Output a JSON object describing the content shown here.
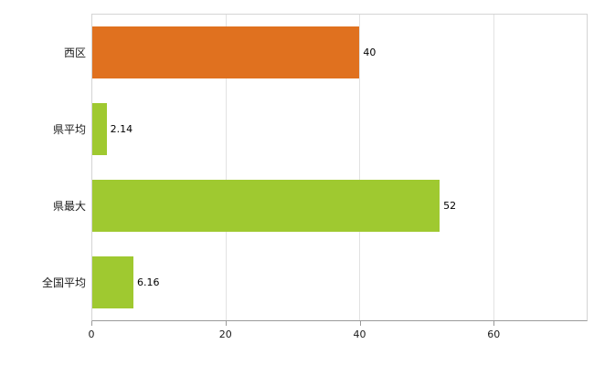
{
  "chart_data": {
    "type": "bar",
    "orientation": "horizontal",
    "title": "",
    "xlabel": "",
    "ylabel": "",
    "categories": [
      "西区",
      "県平均",
      "県最大",
      "全国平均"
    ],
    "values": [
      40,
      2.14,
      52,
      6.16
    ],
    "value_labels": [
      "40",
      "2.14",
      "52",
      "6.16"
    ],
    "bar_colors": [
      "#e0711f",
      "#9fc930",
      "#9fc930",
      "#9fc930"
    ],
    "xlim": [
      0,
      74
    ],
    "xticks": [
      0,
      20,
      40,
      60
    ],
    "xtick_labels": [
      "0",
      "20",
      "40",
      "60"
    ],
    "grid": true,
    "legend": false,
    "colors": {
      "accent_orange": "#e0711f",
      "accent_green": "#9fc930",
      "plot_border": "#d4d4d4",
      "axis_line": "#9a9a9a",
      "gridline": "#e2e2e2",
      "background": "#ffffff",
      "text": "#1a1a1a"
    }
  }
}
